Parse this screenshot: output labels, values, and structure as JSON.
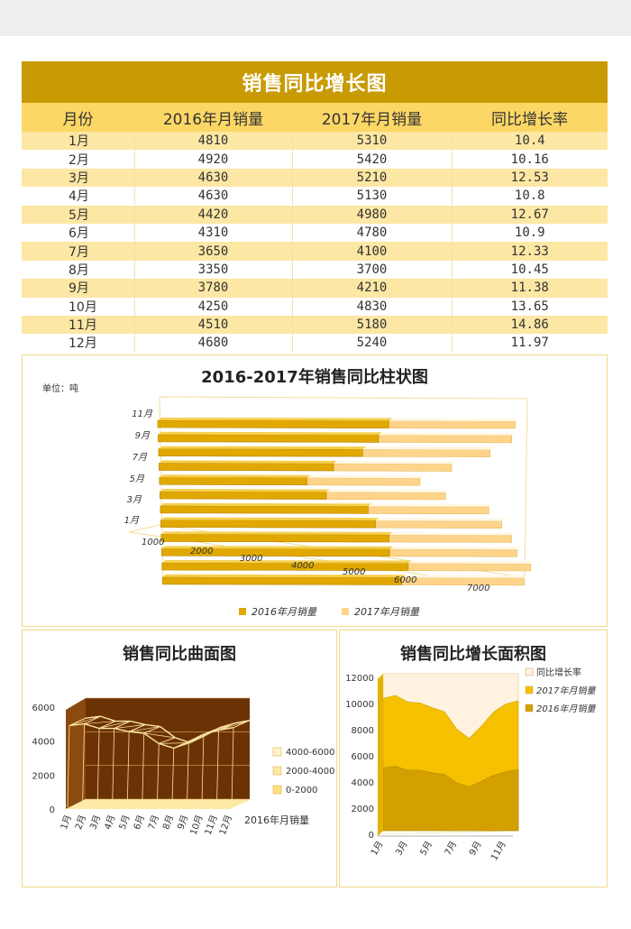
{
  "table": {
    "title": "销售同比增长图",
    "headers": [
      "月份",
      "2016年月销量",
      "2017年月销量",
      "同比增长率"
    ],
    "rows": [
      [
        "1月",
        "4810",
        "5310",
        "10.4"
      ],
      [
        "2月",
        "4920",
        "5420",
        "10.16"
      ],
      [
        "3月",
        "4630",
        "5210",
        "12.53"
      ],
      [
        "4月",
        "4630",
        "5130",
        "10.8"
      ],
      [
        "5月",
        "4420",
        "4980",
        "12.67"
      ],
      [
        "6月",
        "4310",
        "4780",
        "10.9"
      ],
      [
        "7月",
        "3650",
        "4100",
        "12.33"
      ],
      [
        "8月",
        "3350",
        "3700",
        "10.45"
      ],
      [
        "9月",
        "3780",
        "4210",
        "11.38"
      ],
      [
        "10月",
        "4250",
        "4830",
        "13.65"
      ],
      [
        "11月",
        "4510",
        "5180",
        "14.86"
      ],
      [
        "12月",
        "4680",
        "5240",
        "11.97"
      ]
    ]
  },
  "chart_data": [
    {
      "type": "bar",
      "title": "2016-2017年销售同比柱状图",
      "unit_note": "单位：吨",
      "categories": [
        "1月",
        "2月",
        "3月",
        "4月",
        "5月",
        "6月",
        "7月",
        "8月",
        "9月",
        "10月",
        "11月",
        "12月"
      ],
      "y_tick_labels": [
        "1月",
        "3月",
        "5月",
        "7月",
        "9月",
        "11月"
      ],
      "x_ticks": [
        1000,
        2000,
        3000,
        4000,
        5000,
        6000,
        7000
      ],
      "xlim": [
        1000,
        7000
      ],
      "series": [
        {
          "name": "2016年月销量",
          "values": [
            4810,
            4920,
            4630,
            4630,
            4420,
            4310,
            3650,
            3350,
            3780,
            4250,
            4510,
            4680
          ],
          "color": "#e0a800"
        },
        {
          "name": "2017年月销量",
          "values": [
            5310,
            5420,
            5210,
            5130,
            4980,
            4780,
            4100,
            3700,
            4210,
            4830,
            5180,
            5240
          ],
          "color": "#fdd48a"
        }
      ],
      "legend": "bottom"
    },
    {
      "type": "area",
      "subtype": "3d-surface",
      "title": "销售同比曲面图",
      "categories": [
        "1月",
        "2月",
        "3月",
        "4月",
        "5月",
        "6月",
        "7月",
        "8月",
        "9月",
        "10月",
        "11月",
        "12月"
      ],
      "series_label": "2016年月销量",
      "values": [
        4810,
        4920,
        4630,
        4630,
        4420,
        4310,
        3650,
        3350,
        3780,
        4250,
        4510,
        4680
      ],
      "y_ticks": [
        0,
        2000,
        4000,
        6000
      ],
      "ylim": [
        0,
        6000
      ],
      "legend": [
        "4000-6000",
        "2000-4000",
        "0-2000"
      ],
      "legend_colors": [
        "#fff3cc",
        "#ffe9a8",
        "#ffdf80"
      ],
      "wall_color": "#6b3205",
      "floor_color": "#ffe9a6"
    },
    {
      "type": "area",
      "subtype": "3d-stacked",
      "title": "销售同比增长面积图",
      "categories": [
        "1月",
        "2月",
        "3月",
        "4月",
        "5月",
        "6月",
        "7月",
        "8月",
        "9月",
        "10月",
        "11月",
        "12月"
      ],
      "x_tick_labels": [
        "1月",
        "3月",
        "5月",
        "7月",
        "9月",
        "11月"
      ],
      "series": [
        {
          "name": "同比增长率",
          "values": [
            10.4,
            10.16,
            12.53,
            10.8,
            12.67,
            10.9,
            12.33,
            10.45,
            11.38,
            13.65,
            14.86,
            11.97
          ],
          "color": "#fff2de"
        },
        {
          "name": "2017年月销量",
          "values": [
            5310,
            5420,
            5210,
            5130,
            4980,
            4780,
            4100,
            3700,
            4210,
            4830,
            5180,
            5240
          ],
          "color": "#f5c100"
        },
        {
          "name": "2016年月销量",
          "values": [
            4810,
            4920,
            4630,
            4630,
            4420,
            4310,
            3650,
            3350,
            3780,
            4250,
            4510,
            4680
          ],
          "color": "#d4a000"
        }
      ],
      "y_ticks": [
        0,
        2000,
        4000,
        6000,
        8000,
        10000,
        12000
      ],
      "ylim": [
        0,
        12000
      ],
      "legend": "top-right"
    }
  ]
}
